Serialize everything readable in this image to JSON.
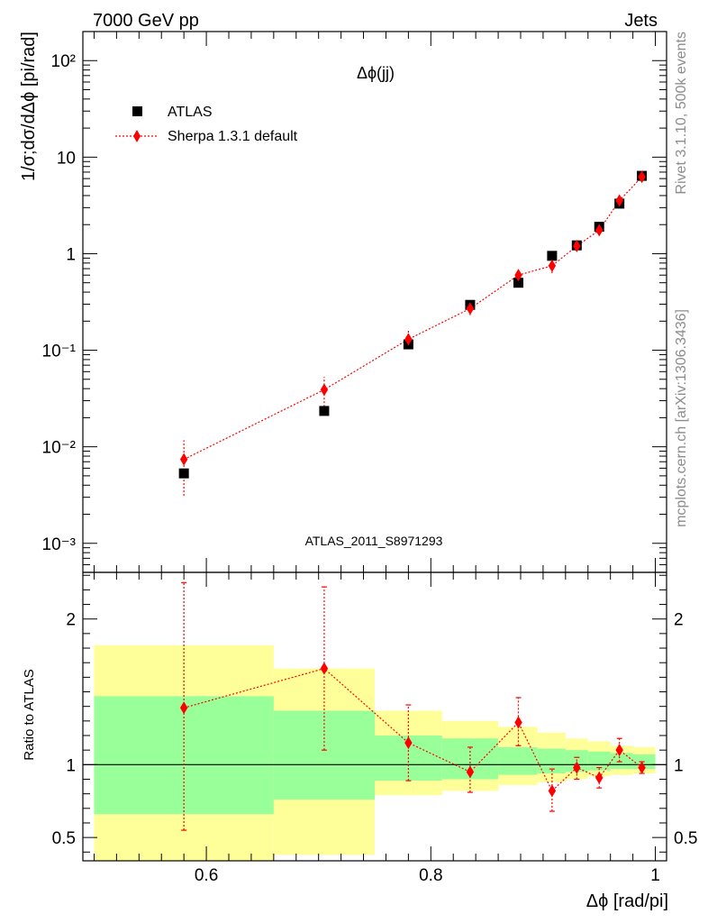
{
  "header": {
    "left_label": "7000 GeV pp",
    "right_label": "Jets"
  },
  "side_labels": {
    "top": "Rivet 3.1.10,  500k events",
    "bottom": "mcplots.cern.ch [arXiv:1306.3436]"
  },
  "chart_data": [
    {
      "type": "scatter",
      "panel": "main",
      "title": "Δϕ(jj)",
      "ylabel": "1/σ;dσ/dΔϕ [pi/rad]",
      "yscale": "log",
      "ylim": [
        0.0005,
        200
      ],
      "xlim": [
        0.49,
        1.01
      ],
      "y_tick_labels": [
        "10⁻³",
        "10⁻²",
        "10⁻¹",
        "1",
        "10",
        "10²"
      ],
      "watermark": "ATLAS_2011_S8971293",
      "legend_position": "top-left",
      "series": [
        {
          "name": "ATLAS",
          "marker": "square",
          "color": "#000000",
          "x": [
            0.58,
            0.705,
            0.78,
            0.835,
            0.878,
            0.908,
            0.93,
            0.95,
            0.968,
            0.988
          ],
          "y": [
            0.0053,
            0.0235,
            0.115,
            0.295,
            0.5,
            0.95,
            1.22,
            1.9,
            3.3,
            6.4
          ]
        },
        {
          "name": "Sherpa 1.3.1 default",
          "marker": "diamond",
          "line": "dotted",
          "color": "#ff0000",
          "x": [
            0.58,
            0.705,
            0.78,
            0.835,
            0.878,
            0.908,
            0.93,
            0.95,
            0.968,
            0.988
          ],
          "y": [
            0.0074,
            0.039,
            0.13,
            0.27,
            0.6,
            0.75,
            1.2,
            1.75,
            3.55,
            6.25
          ],
          "err_low": [
            0.0043,
            0.013,
            0.022,
            0.04,
            0.08,
            0.12,
            0.08,
            0.1,
            0.3,
            0.3
          ],
          "err_high": [
            0.0043,
            0.014,
            0.03,
            0.04,
            0.08,
            0.12,
            0.08,
            0.1,
            0.4,
            0.4
          ]
        }
      ]
    },
    {
      "type": "scatter",
      "panel": "ratio",
      "ylabel": "Ratio to ATLAS",
      "xlabel": "Δϕ [rad/pi]",
      "xlim": [
        0.49,
        1.01
      ],
      "ylim": [
        0.34,
        2.32
      ],
      "x_ticks": [
        0.6,
        0.8,
        1
      ],
      "x_tick_labels": [
        "0.6",
        "0.8",
        "1"
      ],
      "y_ticks": [
        0.5,
        1,
        2
      ],
      "y_tick_labels": [
        "0.5",
        "1",
        "2"
      ],
      "reference_line": 1,
      "uncertainty_bands": [
        {
          "x_low": 0.5,
          "x_high": 0.66,
          "inner_low": 0.66,
          "inner_high": 1.47,
          "outer_low": 0.34,
          "outer_high": 1.82
        },
        {
          "x_low": 0.66,
          "x_high": 0.75,
          "inner_low": 0.76,
          "inner_high": 1.37,
          "outer_low": 0.38,
          "outer_high": 1.66
        },
        {
          "x_low": 0.75,
          "x_high": 0.81,
          "inner_low": 0.89,
          "inner_high": 1.2,
          "outer_low": 0.79,
          "outer_high": 1.37
        },
        {
          "x_low": 0.81,
          "x_high": 0.86,
          "inner_low": 0.9,
          "inner_high": 1.18,
          "outer_low": 0.82,
          "outer_high": 1.3
        },
        {
          "x_low": 0.86,
          "x_high": 0.895,
          "inner_low": 0.93,
          "inner_high": 1.12,
          "outer_low": 0.86,
          "outer_high": 1.26
        },
        {
          "x_low": 0.895,
          "x_high": 0.92,
          "inner_low": 0.94,
          "inner_high": 1.11,
          "outer_low": 0.88,
          "outer_high": 1.22
        },
        {
          "x_low": 0.92,
          "x_high": 0.94,
          "inner_low": 0.95,
          "inner_high": 1.1,
          "outer_low": 0.9,
          "outer_high": 1.18
        },
        {
          "x_low": 0.94,
          "x_high": 0.96,
          "inner_low": 0.96,
          "inner_high": 1.09,
          "outer_low": 0.92,
          "outer_high": 1.16
        },
        {
          "x_low": 0.96,
          "x_high": 0.98,
          "inner_low": 0.97,
          "inner_high": 1.08,
          "outer_low": 0.93,
          "outer_high": 1.13
        },
        {
          "x_low": 0.98,
          "x_high": 1.0,
          "inner_low": 0.97,
          "inner_high": 1.07,
          "outer_low": 0.94,
          "outer_high": 1.12
        }
      ],
      "band_colors": {
        "inner": "#99ff99",
        "outer": "#ffff99"
      },
      "series": [
        {
          "name": "Sherpa 1.3.1 default",
          "marker": "diamond",
          "line": "dotted",
          "color": "#ff0000",
          "x": [
            0.58,
            0.705,
            0.78,
            0.835,
            0.878,
            0.908,
            0.93,
            0.95,
            0.968,
            0.988
          ],
          "y": [
            1.39,
            1.66,
            1.15,
            0.95,
            1.29,
            0.82,
            0.98,
            0.91,
            1.1,
            0.98
          ],
          "err_low": [
            0.84,
            0.56,
            0.26,
            0.14,
            0.16,
            0.14,
            0.08,
            0.07,
            0.08,
            0.04
          ],
          "err_high": [
            0.86,
            0.56,
            0.26,
            0.17,
            0.17,
            0.15,
            0.07,
            0.07,
            0.08,
            0.04
          ]
        }
      ]
    }
  ]
}
